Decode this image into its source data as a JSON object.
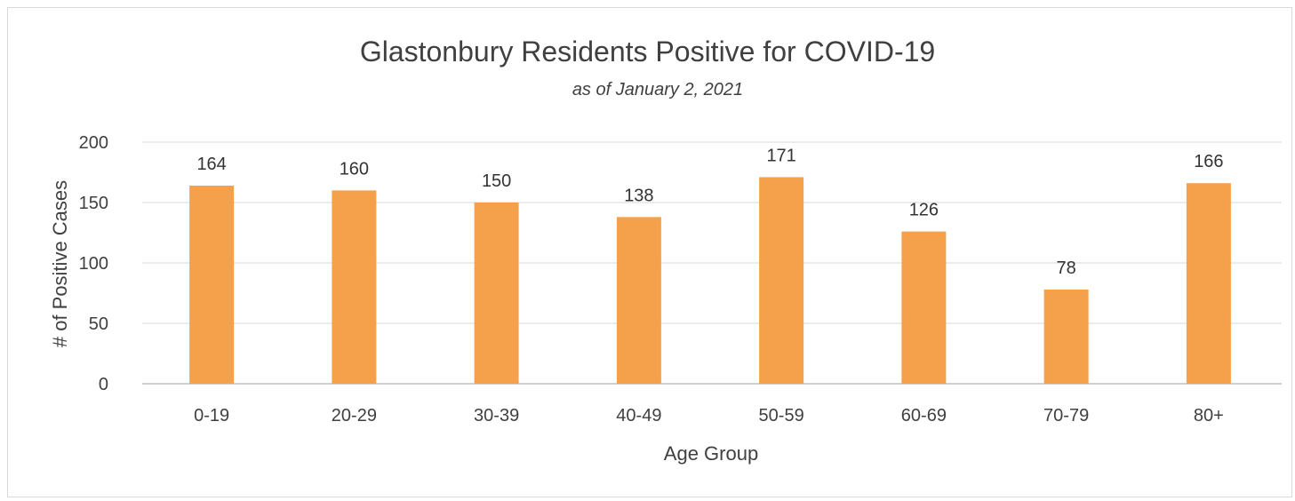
{
  "chart_data": {
    "type": "bar",
    "title": "Glastonbury Residents Positive for COVID-19",
    "subtitle": "as of January 2, 2021",
    "xlabel": "Age Group",
    "ylabel": "# of Positive Cases",
    "categories": [
      "0-19",
      "20-29",
      "30-39",
      "40-49",
      "50-59",
      "60-69",
      "70-79",
      "80+"
    ],
    "values": [
      164,
      160,
      150,
      138,
      171,
      126,
      78,
      166
    ],
    "data_labels": [
      "164",
      "160",
      "150",
      "138",
      "171",
      "126",
      "78",
      "166"
    ],
    "ylim": [
      0,
      200
    ],
    "yticks": [
      "0",
      "50",
      "100",
      "150",
      "200"
    ],
    "grid": true,
    "legend": "none",
    "colors": {
      "bar": "#F5A04A",
      "grid": "#d9d9d9",
      "axis": "#bfbfbf"
    }
  }
}
